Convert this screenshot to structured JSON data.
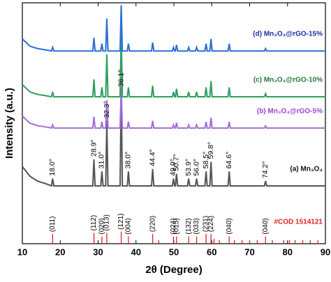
{
  "chart_data": {
    "type": "line",
    "xlabel": "2θ (Degree)",
    "ylabel": "Intensity (a.u.)",
    "xlim": [
      10,
      90
    ],
    "ylim": [
      0,
      100
    ],
    "xticks": [
      10,
      20,
      30,
      40,
      50,
      60,
      70,
      80,
      90
    ],
    "x": [
      10,
      12,
      14,
      16,
      17.7,
      18,
      18.3,
      22,
      26,
      28.6,
      28.9,
      29.2,
      30.7,
      31,
      31.3,
      32,
      32.3,
      32.6,
      35.8,
      36.1,
      36.4,
      37.7,
      38,
      38.3,
      40,
      44.1,
      44.4,
      44.7,
      48,
      49.6,
      49.9,
      50.2,
      50.4,
      50.7,
      51,
      53.6,
      53.9,
      54.2,
      55.7,
      56,
      56.3,
      58.2,
      58.5,
      58.8,
      59.5,
      59.8,
      60.1,
      62,
      64.3,
      64.6,
      64.9,
      68,
      73.9,
      74.2,
      74.5,
      78,
      82,
      86,
      90
    ],
    "series": [
      {
        "name": "(a) Mn₃O₄",
        "color": "#555555",
        "label_color": "#111111",
        "values": [
          32,
          28,
          26,
          25,
          24,
          27,
          24,
          24,
          24,
          24,
          35,
          24,
          24,
          30,
          24,
          24,
          51,
          24,
          24,
          64,
          24,
          24,
          30,
          24,
          24,
          24,
          31,
          24,
          24,
          24,
          27,
          24,
          24,
          29,
          24,
          24,
          27,
          24,
          24,
          27,
          24,
          24,
          30,
          24,
          24,
          34,
          24,
          24,
          24,
          30,
          24,
          24,
          24,
          26,
          24,
          24,
          24,
          24,
          24
        ]
      },
      {
        "name": "(b) Mn₃O₄@rGO-5%",
        "color": "#a66bd6",
        "label_color": "#9b3fd0",
        "values": [
          53,
          50,
          49,
          48.5,
          48,
          49.3,
          48,
          48,
          48,
          48,
          52.7,
          48,
          48,
          50.6,
          48,
          48,
          59.6,
          48,
          48,
          65.2,
          48,
          48,
          50.6,
          48,
          48,
          48,
          51,
          48,
          48,
          48,
          49.3,
          48,
          48,
          50.2,
          48,
          48,
          49.3,
          48,
          48,
          49.3,
          48,
          48,
          50.6,
          48,
          48,
          52.3,
          48,
          48,
          48,
          50.6,
          48,
          48,
          48,
          48.9,
          48,
          48,
          48,
          48,
          48
        ]
      },
      {
        "name": "(c) Mn₃O₄@rGO-10%",
        "color": "#2e9e5e",
        "label_color": "#1f7a3a",
        "values": [
          66,
          63,
          62,
          61.5,
          61,
          63,
          61,
          61,
          61,
          61,
          68.2,
          61,
          61,
          64.9,
          61,
          61,
          78.6,
          61,
          61,
          87,
          61,
          61,
          64.9,
          61,
          61,
          61,
          65.6,
          61,
          61,
          61,
          63,
          61,
          61,
          64.3,
          61,
          61,
          63,
          61,
          61,
          63,
          61,
          61,
          64.9,
          61,
          61,
          67.5,
          61,
          61,
          61,
          64.9,
          61,
          61,
          61,
          62.3,
          61,
          61,
          61,
          61,
          61
        ]
      },
      {
        "name": "(d) Mn₃O₄@rGO-15%",
        "color": "#2a6fd6",
        "label_color": "#1a2fa0",
        "values": [
          85,
          82,
          81,
          80.5,
          80,
          81.5,
          80,
          80,
          80,
          80,
          85.5,
          80,
          80,
          83,
          80,
          80,
          93.5,
          80,
          80,
          99,
          80,
          80,
          83,
          80,
          80,
          80,
          83.5,
          80,
          80,
          80,
          81.5,
          80,
          80,
          82.5,
          80,
          80,
          81.5,
          80,
          80,
          81.5,
          80,
          80,
          83,
          80,
          80,
          85,
          80,
          80,
          80,
          83,
          80,
          80,
          80,
          81,
          80,
          80,
          80,
          80,
          80
        ]
      }
    ],
    "annotations": [
      {
        "text": "18.0°",
        "x": 18
      },
      {
        "text": "28.9°",
        "x": 28.9
      },
      {
        "text": "31.0°",
        "x": 31
      },
      {
        "text": "32.3°",
        "x": 32.3
      },
      {
        "text": "36.1°",
        "x": 36.1
      },
      {
        "text": "38.0°",
        "x": 38
      },
      {
        "text": "44.4°",
        "x": 44.4
      },
      {
        "text": "49.9°",
        "x": 49.9
      },
      {
        "text": "50.7°",
        "x": 50.7
      },
      {
        "text": "53.9°",
        "x": 53.9
      },
      {
        "text": "56.0°",
        "x": 56
      },
      {
        "text": "58.5°",
        "x": 58.5
      },
      {
        "text": "59.8°",
        "x": 59.8
      },
      {
        "text": "64.6°",
        "x": 64.6
      },
      {
        "text": "74.2°",
        "x": 74.2
      }
    ],
    "reference": {
      "name": "#COD 1514121",
      "color": "#e02020",
      "x": [
        18,
        28.9,
        31,
        32.3,
        36.1,
        38,
        44.4,
        46,
        49.9,
        50.7,
        53.9,
        56,
        58.5,
        59.8,
        60.6,
        62,
        64.6,
        66,
        68,
        70,
        72,
        74.2,
        76,
        79,
        80.5,
        82,
        84,
        86,
        88
      ],
      "values": [
        4,
        4.5,
        3,
        4.5,
        5,
        3,
        4,
        1.5,
        3,
        3,
        3,
        3,
        4,
        4,
        2,
        1.5,
        3,
        1.5,
        1.5,
        1.5,
        1.5,
        3,
        1.5,
        1.5,
        1.5,
        1.5,
        1.5,
        1.5,
        1.5
      ],
      "labels": [
        "(011)",
        "(112)",
        "(020)",
        "(013)",
        "(121)",
        "(004)",
        "(220)",
        null,
        "(024)",
        "(015)",
        "(132)",
        "(033)",
        "(231)",
        "(224)",
        null,
        null,
        "(040)",
        null,
        null,
        null,
        null,
        "(040)",
        null,
        null,
        null,
        null,
        null,
        null,
        null
      ]
    }
  }
}
